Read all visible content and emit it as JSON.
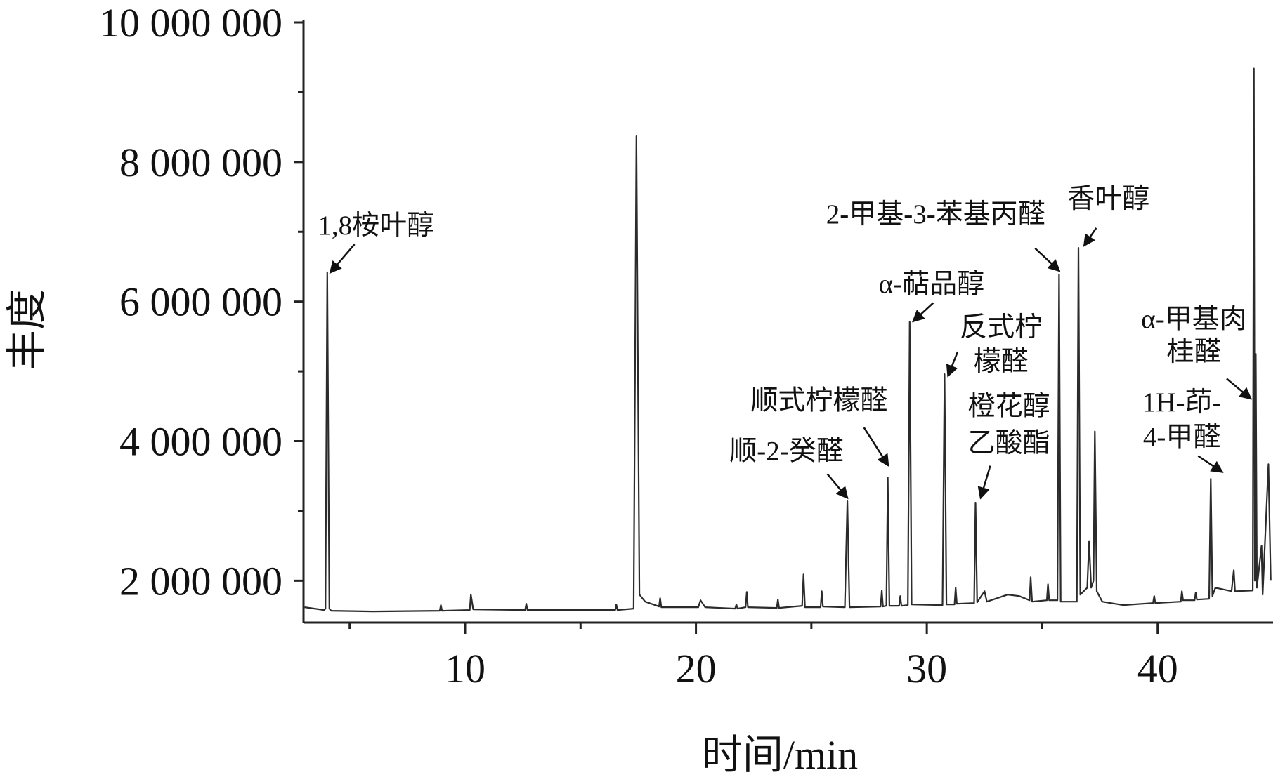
{
  "chart_data": {
    "type": "line",
    "xlabel": "时间/min",
    "ylabel": "丰度",
    "xlim": [
      3,
      45
    ],
    "xticks": [
      10,
      20,
      30,
      40
    ],
    "xminorticks": [
      5,
      15,
      25,
      35
    ],
    "ylim": [
      1400000,
      10000000
    ],
    "yticks": [
      {
        "value": 2000000,
        "label": "2 000 000"
      },
      {
        "value": 4000000,
        "label": "4 000 000"
      },
      {
        "value": 6000000,
        "label": "6 000 000"
      },
      {
        "value": 8000000,
        "label": "8 000 000"
      },
      {
        "value": 10000000,
        "label": "10 000 000"
      }
    ],
    "yminorticks": [
      3000000,
      5000000,
      7000000,
      9000000
    ],
    "color": "#2b2b2b",
    "x": [
      3.05,
      3.9,
      3.95,
      4.03,
      4.12,
      4.2,
      6,
      8.9,
      8.95,
      9.0,
      10.2,
      10.25,
      10.35,
      12.6,
      12.65,
      12.7,
      16.5,
      16.55,
      16.6,
      17.3,
      17.42,
      17.55,
      17.8,
      18.4,
      18.45,
      18.5,
      20.1,
      20.2,
      20.4,
      21.7,
      21.75,
      21.8,
      22.15,
      22.2,
      22.25,
      23.5,
      23.55,
      23.6,
      24.6,
      24.66,
      24.72,
      25.4,
      25.45,
      25.5,
      26.45,
      26.56,
      26.65,
      28.0,
      28.05,
      28.1,
      28.25,
      28.31,
      28.38,
      28.8,
      28.85,
      28.9,
      29.18,
      29.26,
      29.34,
      30.68,
      30.77,
      30.85,
      31.2,
      31.25,
      31.3,
      32.05,
      32.11,
      32.18,
      32.5,
      32.6,
      33.5,
      34.0,
      34.45,
      34.5,
      34.56,
      35.2,
      35.25,
      35.3,
      35.66,
      35.73,
      35.8,
      36.5,
      36.57,
      36.65,
      36.95,
      37.03,
      37.12,
      37.22,
      37.28,
      37.36,
      37.6,
      38.5,
      39.8,
      39.85,
      39.9,
      41.0,
      41.05,
      41.1,
      41.6,
      41.65,
      41.7,
      42.23,
      42.3,
      42.37,
      42.5,
      43.2,
      43.3,
      43.35,
      44.12,
      44.17,
      44.21,
      44.25,
      44.3,
      44.5,
      44.55,
      44.8,
      44.9
    ],
    "values": [
      1620000,
      1580000,
      1600000,
      6420000,
      1600000,
      1570000,
      1560000,
      1570000,
      1650000,
      1570000,
      1580000,
      1800000,
      1590000,
      1580000,
      1670000,
      1580000,
      1580000,
      1660000,
      1580000,
      1600000,
      8370000,
      1800000,
      1700000,
      1630000,
      1750000,
      1620000,
      1620000,
      1720000,
      1620000,
      1600000,
      1660000,
      1600000,
      1620000,
      1840000,
      1620000,
      1610000,
      1730000,
      1610000,
      1640000,
      2090000,
      1620000,
      1620000,
      1850000,
      1630000,
      1620000,
      3140000,
      1620000,
      1630000,
      1860000,
      1630000,
      1640000,
      3480000,
      1640000,
      1640000,
      1780000,
      1640000,
      1650000,
      5710000,
      1660000,
      1650000,
      4960000,
      1660000,
      1660000,
      1900000,
      1670000,
      1680000,
      3120000,
      1690000,
      1850000,
      1700000,
      1800000,
      1780000,
      1720000,
      2050000,
      1700000,
      1720000,
      1950000,
      1720000,
      1720000,
      6390000,
      1700000,
      1700000,
      6770000,
      1800000,
      1900000,
      2560000,
      1900000,
      2000000,
      4140000,
      1850000,
      1700000,
      1650000,
      1680000,
      1780000,
      1680000,
      1700000,
      1850000,
      1720000,
      1720000,
      1830000,
      1730000,
      1740000,
      3460000,
      1780000,
      1900000,
      1850000,
      2150000,
      1850000,
      1860000,
      9340000,
      2000000,
      5250000,
      1900000,
      2500000,
      1800000,
      3670000,
      2000000
    ],
    "annotations": [
      {
        "lines": [
          "1,8桉叶醇"
        ]
      },
      {
        "lines": [
          "顺-2-癸醛"
        ]
      },
      {
        "lines": [
          "顺式柠檬醛"
        ]
      },
      {
        "lines": [
          "α-萜品醇"
        ]
      },
      {
        "lines": [
          "反式柠",
          "檬醛"
        ]
      },
      {
        "lines": [
          "橙花醇",
          "乙酸酯"
        ]
      },
      {
        "lines": [
          "2-甲基-3-苯基丙醛"
        ]
      },
      {
        "lines": [
          "香叶醇"
        ]
      },
      {
        "lines": [
          "α-甲基肉",
          "桂醛"
        ]
      },
      {
        "lines": [
          "1H-茚-",
          "4-甲醛"
        ]
      }
    ]
  }
}
